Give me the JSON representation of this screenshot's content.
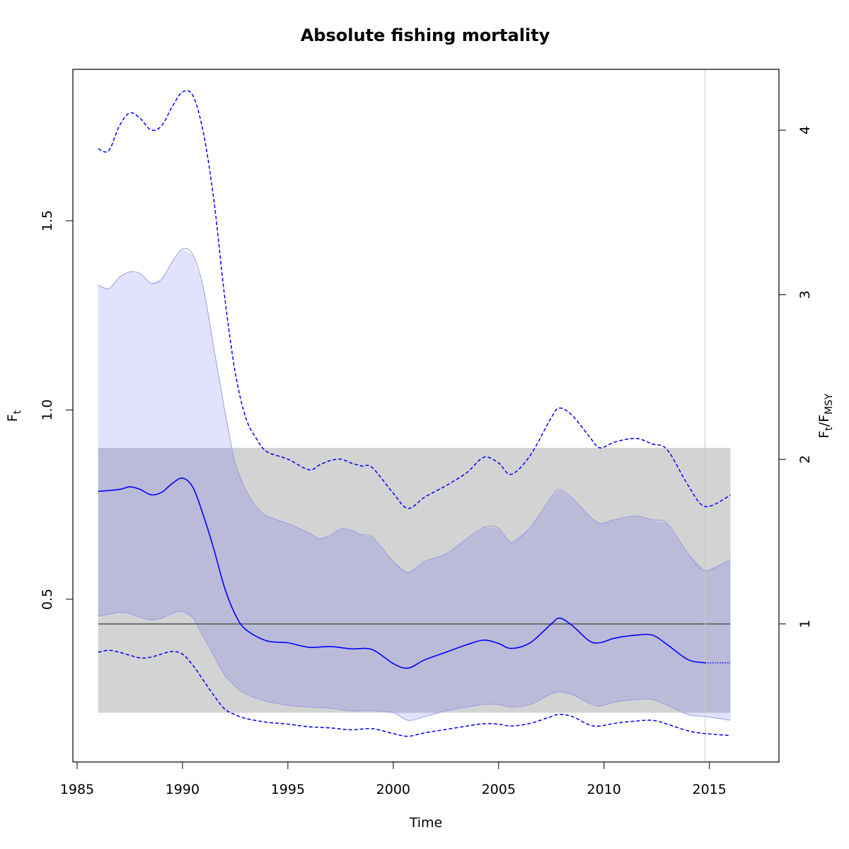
{
  "chart_data": {
    "type": "line",
    "title": "Absolute fishing mortality",
    "xlabel": "Time",
    "ylabel": {
      "main": "F",
      "sub": "t"
    },
    "y2label": {
      "main": "F",
      "sub": "t",
      "sep": "/F",
      "sub2": "MSY"
    },
    "xlim": [
      1984.8,
      2018.3
    ],
    "ylim": [
      0.07,
      1.9
    ],
    "y2_scale_fmsy": 0.4348,
    "x_ticks": [
      1985,
      1990,
      1995,
      2000,
      2005,
      2010,
      2015
    ],
    "y_ticks": [
      "0.5",
      "1.0",
      "1.5"
    ],
    "y2_ticks": [
      1,
      2,
      3,
      4
    ],
    "colors": {
      "main": "#0000ff",
      "ci_fill": "#e2e2fe",
      "ci_edge": "#9a9ae6",
      "overlap_fill": "#bbbbd9",
      "fmsy_band": "#d3d3d3",
      "fmsy_line": "#6e6e6e",
      "last_obs_line": "#c8c8c8"
    },
    "fmsy": {
      "value": 0.4348,
      "lower": 0.2,
      "upper": 0.9
    },
    "last_observation": 2014.8,
    "series": [
      {
        "role": "estimate",
        "x": [
          1986,
          1987,
          1987.5,
          1988,
          1988.5,
          1989,
          1989.5,
          1990,
          1990.5,
          1991,
          1991.5,
          1992,
          1992.5,
          1993,
          1994,
          1995,
          1996,
          1997,
          1998,
          1999,
          2000,
          2000.7,
          2001.5,
          2002.5,
          2003.5,
          2004.3,
          2005,
          2005.6,
          2006.5,
          2007.5,
          2007.9,
          2008.5,
          2009.3,
          2009.8,
          2010.5,
          2011.5,
          2012.3,
          2013,
          2014,
          2014.8
        ],
        "values": [
          0.785,
          0.79,
          0.797,
          0.79,
          0.776,
          0.782,
          0.805,
          0.82,
          0.795,
          0.72,
          0.63,
          0.53,
          0.46,
          0.42,
          0.39,
          0.385,
          0.373,
          0.375,
          0.369,
          0.367,
          0.33,
          0.318,
          0.34,
          0.36,
          0.38,
          0.392,
          0.383,
          0.37,
          0.385,
          0.435,
          0.45,
          0.43,
          0.39,
          0.385,
          0.397,
          0.405,
          0.405,
          0.38,
          0.34,
          0.332
        ]
      },
      {
        "role": "prediction",
        "x": [
          2014.8,
          2016
        ],
        "values": [
          0.332,
          0.332
        ]
      },
      {
        "role": "ci_upper",
        "x": [
          1986,
          1986.5,
          1987,
          1987.5,
          1988,
          1988.5,
          1989,
          1989.5,
          1990,
          1990.5,
          1991,
          1991.5,
          1992,
          1992.5,
          1993,
          1993.5,
          1994,
          1995,
          1996,
          1996.5,
          1997,
          1997.5,
          1998,
          1998.5,
          1999,
          2000,
          2000.7,
          2001.5,
          2002.5,
          2003.5,
          2004.3,
          2005,
          2005.6,
          2006.5,
          2007.5,
          2007.9,
          2008.5,
          2009.3,
          2009.8,
          2010.5,
          2011.5,
          2012.3,
          2013,
          2014,
          2014.8,
          2016
        ],
        "values": [
          1.33,
          1.32,
          1.35,
          1.365,
          1.36,
          1.335,
          1.345,
          1.39,
          1.425,
          1.41,
          1.32,
          1.16,
          1.0,
          0.86,
          0.79,
          0.745,
          0.72,
          0.7,
          0.675,
          0.66,
          0.668,
          0.685,
          0.683,
          0.67,
          0.665,
          0.6,
          0.57,
          0.6,
          0.62,
          0.66,
          0.69,
          0.688,
          0.65,
          0.69,
          0.77,
          0.79,
          0.767,
          0.72,
          0.7,
          0.71,
          0.72,
          0.71,
          0.7,
          0.62,
          0.575,
          0.605
        ]
      },
      {
        "role": "ci_lower",
        "x": [
          1986,
          1987,
          1987.5,
          1988,
          1988.5,
          1989,
          1989.5,
          1990,
          1990.5,
          1991,
          1991.5,
          1992,
          1992.5,
          1993,
          1994,
          1995,
          1996,
          1997,
          1998,
          1999,
          2000,
          2000.7,
          2001.5,
          2002.5,
          2003.5,
          2004.3,
          2005,
          2005.6,
          2006.5,
          2007.5,
          2007.9,
          2008.5,
          2009.3,
          2009.8,
          2010.5,
          2011.5,
          2012.3,
          2013,
          2014,
          2014.8,
          2016
        ],
        "values": [
          0.455,
          0.465,
          0.462,
          0.452,
          0.445,
          0.45,
          0.462,
          0.468,
          0.45,
          0.4,
          0.35,
          0.3,
          0.27,
          0.25,
          0.23,
          0.22,
          0.215,
          0.212,
          0.205,
          0.205,
          0.2,
          0.18,
          0.19,
          0.205,
          0.215,
          0.222,
          0.222,
          0.215,
          0.222,
          0.25,
          0.255,
          0.248,
          0.225,
          0.218,
          0.228,
          0.235,
          0.235,
          0.22,
          0.195,
          0.19,
          0.18
        ]
      },
      {
        "role": "ci_outer_upper",
        "x": [
          1986,
          1986.5,
          1987,
          1987.5,
          1988,
          1988.5,
          1989,
          1989.5,
          1990,
          1990.5,
          1991,
          1991.5,
          1992,
          1992.5,
          1993,
          1993.5,
          1994,
          1995,
          1996,
          1996.5,
          1997,
          1997.5,
          1998,
          1998.5,
          1999,
          2000,
          2000.7,
          2001.5,
          2002.5,
          2003.5,
          2004.3,
          2005,
          2005.6,
          2006.5,
          2007.5,
          2007.9,
          2008.5,
          2009.3,
          2009.8,
          2010.5,
          2011.5,
          2012.3,
          2013,
          2014,
          2014.8,
          2016
        ],
        "values": [
          1.69,
          1.685,
          1.75,
          1.785,
          1.77,
          1.74,
          1.75,
          1.8,
          1.84,
          1.83,
          1.73,
          1.55,
          1.3,
          1.1,
          0.98,
          0.925,
          0.89,
          0.87,
          0.842,
          0.855,
          0.866,
          0.87,
          0.86,
          0.852,
          0.848,
          0.78,
          0.74,
          0.77,
          0.8,
          0.835,
          0.875,
          0.86,
          0.83,
          0.88,
          0.98,
          1.005,
          0.985,
          0.93,
          0.9,
          0.915,
          0.925,
          0.91,
          0.895,
          0.8,
          0.745,
          0.775
        ]
      },
      {
        "role": "ci_outer_lower",
        "x": [
          1986,
          1986.5,
          1987,
          1987.5,
          1988,
          1988.5,
          1989,
          1989.5,
          1990,
          1990.5,
          1991,
          1991.5,
          1992,
          1992.5,
          1993,
          1994,
          1995,
          1996,
          1997,
          1998,
          1999,
          2000,
          2000.7,
          2001.5,
          2002.5,
          2003.5,
          2004.3,
          2005,
          2005.6,
          2006.5,
          2007.5,
          2007.9,
          2008.5,
          2009.3,
          2009.8,
          2010.5,
          2011.5,
          2012.3,
          2013,
          2014,
          2014.8,
          2016
        ],
        "values": [
          0.36,
          0.365,
          0.36,
          0.352,
          0.345,
          0.347,
          0.355,
          0.362,
          0.355,
          0.325,
          0.285,
          0.245,
          0.21,
          0.195,
          0.185,
          0.175,
          0.17,
          0.163,
          0.16,
          0.155,
          0.158,
          0.145,
          0.138,
          0.147,
          0.156,
          0.165,
          0.171,
          0.17,
          0.165,
          0.172,
          0.19,
          0.196,
          0.19,
          0.168,
          0.165,
          0.172,
          0.178,
          0.18,
          0.17,
          0.152,
          0.145,
          0.14
        ]
      }
    ]
  }
}
